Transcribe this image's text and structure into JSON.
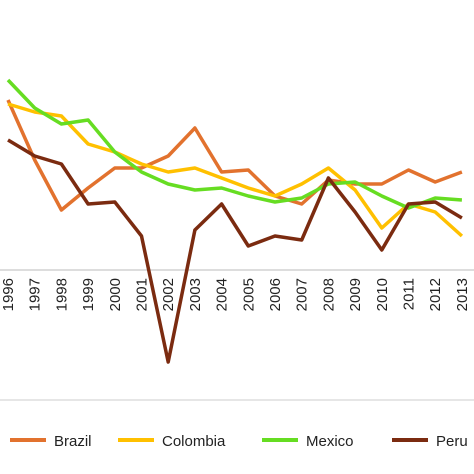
{
  "chart_data": {
    "type": "line",
    "categories": [
      "1996",
      "1997",
      "1998",
      "1999",
      "2000",
      "2001",
      "2002",
      "2003",
      "2004",
      "2005",
      "2006",
      "2007",
      "2008",
      "2009",
      "2010",
      "2011",
      "2012",
      "2013"
    ],
    "ylim": [
      0,
      100
    ],
    "legend": "bottom",
    "series": [
      {
        "name": "Brazil",
        "color": "#e2722e",
        "values": [
          75,
          60,
          47.5,
          53,
          58,
          58,
          61,
          68,
          57,
          57.5,
          51,
          49,
          55,
          54,
          54,
          57.5,
          54.5,
          57
        ]
      },
      {
        "name": "Colombia",
        "color": "#ffc000",
        "values": [
          74,
          72,
          71,
          64,
          62,
          59,
          57,
          58,
          55.5,
          53,
          51,
          54,
          58,
          52.5,
          43,
          49,
          47,
          41
        ]
      },
      {
        "name": "Mexico",
        "color": "#66dd22",
        "values": [
          80,
          73,
          69,
          70,
          62,
          57,
          54,
          52.5,
          53,
          51,
          49.5,
          50.5,
          54,
          54.5,
          51,
          48,
          50.5,
          50
        ]
      },
      {
        "name": "Peru",
        "color": "#7b2b10",
        "values": [
          65,
          61,
          59,
          49,
          49.5,
          41,
          9.5,
          42.5,
          49,
          38.5,
          41,
          40,
          55.5,
          47,
          37.5,
          49,
          49.5,
          45.5
        ]
      }
    ]
  }
}
